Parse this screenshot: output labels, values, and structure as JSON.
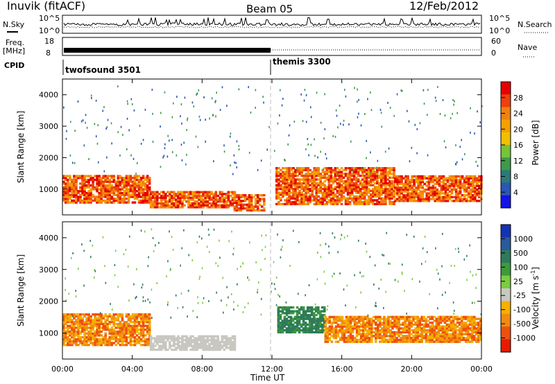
{
  "header": {
    "station": "Inuvik (fitACF)",
    "beam": "Beam 05",
    "date": "12/Feb/2012"
  },
  "aux_panels": {
    "noise": {
      "left_label": "N.Sky",
      "right_label": "N.Search",
      "left_ticks": [
        "10^5",
        "10^0"
      ],
      "right_ticks": [
        "10^5",
        "10^0"
      ]
    },
    "freq": {
      "left_label_1": "Freq.",
      "left_label_2": "[MHz]",
      "right_label": "Nave",
      "left_ticks": [
        "18",
        "8"
      ],
      "right_ticks": [
        "60",
        "0"
      ]
    },
    "cpid": {
      "label": "CPID",
      "programs": [
        {
          "name": "twofsound 3501",
          "start_hour": 0,
          "end_hour": 12
        },
        {
          "name": "themis 3300",
          "start_hour": 12,
          "end_hour": 24
        }
      ]
    }
  },
  "chart_data": [
    {
      "type": "heatmap",
      "title": "Power",
      "ylabel": "Slant Range [km]",
      "xlabel": "",
      "xlim": [
        0,
        24
      ],
      "ylim": [
        180,
        4500
      ],
      "y_ticks": [
        1000,
        2000,
        3000,
        4000
      ],
      "colorbar": {
        "label": "Power [dB]",
        "ticks": [
          "4",
          "8",
          "12",
          "16",
          "20",
          "24",
          "28"
        ],
        "colors": [
          "#1414e6",
          "#2a56b8",
          "#2c7a7a",
          "#3f9a4a",
          "#76c43a",
          "#f0c000",
          "#f5a000",
          "#f08010",
          "#ee4010",
          "#e60000"
        ]
      },
      "series": [
        {
          "range_km": [
            550,
            1400
          ],
          "from_h": 0,
          "to_h": 5,
          "level": "high"
        },
        {
          "range_km": [
            400,
            900
          ],
          "from_h": 5,
          "to_h": 9.8,
          "level": "very high"
        },
        {
          "range_km": [
            300,
            800
          ],
          "from_h": 9.8,
          "to_h": 11.5,
          "level": "medium"
        },
        {
          "range_km": [
            500,
            1700
          ],
          "from_h": 12.2,
          "to_h": 19,
          "level": "high"
        },
        {
          "range_km": [
            600,
            1400
          ],
          "from_h": 19,
          "to_h": 24,
          "level": "high"
        }
      ]
    },
    {
      "type": "heatmap",
      "title": "Velocity",
      "ylabel": "Slant Range [km]",
      "xlabel": "Time UT",
      "xlim": [
        0,
        24
      ],
      "ylim": [
        180,
        4500
      ],
      "x_ticks": [
        "00:00",
        "04:00",
        "08:00",
        "12:00",
        "16:00",
        "20:00",
        "00:00"
      ],
      "y_ticks": [
        1000,
        2000,
        3000,
        4000
      ],
      "colorbar": {
        "label": "Velocity [m s",
        "label_sup": "-1",
        "label_end": "]",
        "ticks": [
          "1000",
          "500",
          "100",
          "25",
          "-25",
          "-100",
          "-500",
          "-1000"
        ],
        "colors": [
          "#1432b4",
          "#2a5a9a",
          "#2e7a5a",
          "#3c9a3c",
          "#7ccc40",
          "#c8c8c0",
          "#f5b000",
          "#f08a10",
          "#ee5010",
          "#e61a00"
        ]
      },
      "series": [
        {
          "range_km": [
            600,
            1600
          ],
          "from_h": 0,
          "to_h": 5,
          "velocity": "orange (-100)"
        },
        {
          "range_km": [
            450,
            900
          ],
          "from_h": 5,
          "to_h": 9.8,
          "velocity": "grey (0)"
        },
        {
          "range_km": [
            1000,
            1800
          ],
          "from_h": 12.3,
          "to_h": 15,
          "velocity": "green (100)"
        },
        {
          "range_km": [
            700,
            1500
          ],
          "from_h": 15,
          "to_h": 24,
          "velocity": "orange (-100)"
        }
      ]
    }
  ],
  "colors": {
    "dashed_divider": "#bbbbbb",
    "axis": "#000000"
  }
}
